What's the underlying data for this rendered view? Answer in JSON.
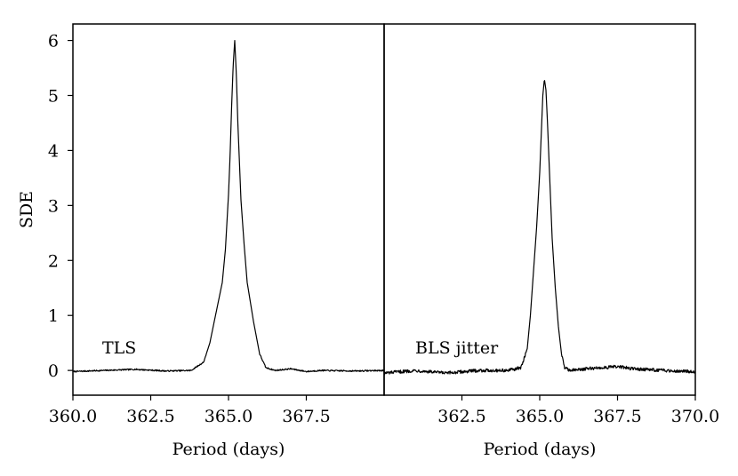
{
  "chart_data": [
    {
      "type": "line",
      "panel": "left",
      "annotation": "TLS",
      "title": "",
      "xlabel": "Period (days)",
      "ylabel": "SDE",
      "xlim": [
        360.0,
        370.0
      ],
      "ylim": [
        -0.45,
        6.3
      ],
      "xticks": [
        360.0,
        362.5,
        365.0,
        367.5
      ],
      "xtick_labels": [
        "360.0",
        "362.5",
        "365.0",
        "367.5"
      ],
      "yticks": [
        0,
        1,
        2,
        3,
        4,
        5,
        6
      ],
      "ytick_labels": [
        "0",
        "1",
        "2",
        "3",
        "4",
        "5",
        "6"
      ],
      "grid": false,
      "series": [
        {
          "x": [
            360.0,
            361.0,
            362.0,
            363.0,
            363.8,
            364.2,
            364.4,
            364.6,
            364.8,
            364.9,
            365.0,
            365.05,
            365.1,
            365.15,
            365.2,
            365.25,
            365.3,
            365.35,
            365.4,
            365.5,
            365.6,
            365.8,
            366.0,
            366.2,
            366.5,
            367.0,
            367.5,
            368.0,
            369.0,
            370.0
          ],
          "y": [
            -0.02,
            0.0,
            0.02,
            -0.01,
            0.0,
            0.15,
            0.5,
            1.05,
            1.6,
            2.2,
            3.2,
            3.9,
            4.8,
            5.55,
            6.0,
            5.4,
            4.5,
            3.8,
            3.1,
            2.3,
            1.6,
            0.9,
            0.3,
            0.05,
            0.0,
            0.03,
            -0.02,
            0.0,
            -0.01,
            0.0
          ]
        }
      ]
    },
    {
      "type": "line",
      "panel": "right",
      "annotation": "BLS jitter",
      "title": "",
      "xlabel": "Period (days)",
      "ylabel": "",
      "xlim": [
        360.0,
        370.0
      ],
      "ylim": [
        -0.45,
        6.3
      ],
      "xticks": [
        362.5,
        365.0,
        367.5,
        370.0
      ],
      "xtick_labels": [
        "362.5",
        "365.0",
        "367.5",
        "370.0"
      ],
      "grid": false,
      "series": [
        {
          "x": [
            360.0,
            361.0,
            362.0,
            363.0,
            364.0,
            364.4,
            364.6,
            364.7,
            364.8,
            364.9,
            365.0,
            365.05,
            365.1,
            365.15,
            365.2,
            365.25,
            365.3,
            365.35,
            365.4,
            365.5,
            365.6,
            365.7,
            365.8,
            366.0,
            366.5,
            367.0,
            367.5,
            368.0,
            369.0,
            370.0
          ],
          "y": [
            -0.05,
            0.0,
            -0.05,
            0.0,
            0.0,
            0.05,
            0.4,
            1.0,
            1.8,
            2.6,
            3.6,
            4.3,
            5.0,
            5.3,
            5.1,
            4.5,
            3.8,
            3.1,
            2.4,
            1.5,
            0.8,
            0.3,
            0.05,
            0.0,
            0.03,
            0.05,
            0.07,
            0.03,
            0.0,
            -0.02
          ]
        }
      ]
    }
  ]
}
